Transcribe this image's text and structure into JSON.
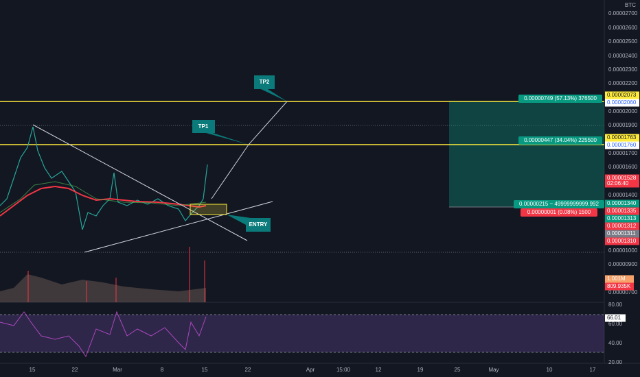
{
  "header": {
    "currency": "BTC"
  },
  "price_axis": [
    "0.00002700",
    "0.00002600",
    "0.00002500",
    "0.00002400",
    "0.00002300",
    "0.00002200",
    "0.00002000",
    "0.00001900",
    "0.00001700",
    "0.00001600",
    "0.00001400",
    "0.00001000",
    "0.00000900",
    "0.00000700"
  ],
  "price_badges": [
    "0.00002073",
    "0.00002060",
    "0.00001763",
    "0.00001760",
    "0.00001528",
    "02:06:40",
    "0.00001340",
    "0.00001335",
    "0.00001313",
    "0.00001312",
    "0.00001311",
    "0.00001310"
  ],
  "volume_badges": [
    "1.001M",
    "809.935K"
  ],
  "rsi_axis": [
    "80.00",
    "60.00",
    "40.00",
    "20.00"
  ],
  "rsi_badge": "66.01",
  "time_axis": [
    "15",
    "22",
    "Mar",
    "8",
    "15",
    "22",
    "Apr",
    "15:00",
    "12",
    "19",
    "25",
    "May",
    "10",
    "17"
  ],
  "annotations": [
    "TP2",
    "TP1",
    "ENTRY"
  ],
  "position_labels": [
    "0.00000749 (57.13%) 376500",
    "0.00000447 (34.04%) 225500",
    "0.00000215 ~ 49999999999.992",
    "0.00000001 (0.08%) 1500"
  ]
}
